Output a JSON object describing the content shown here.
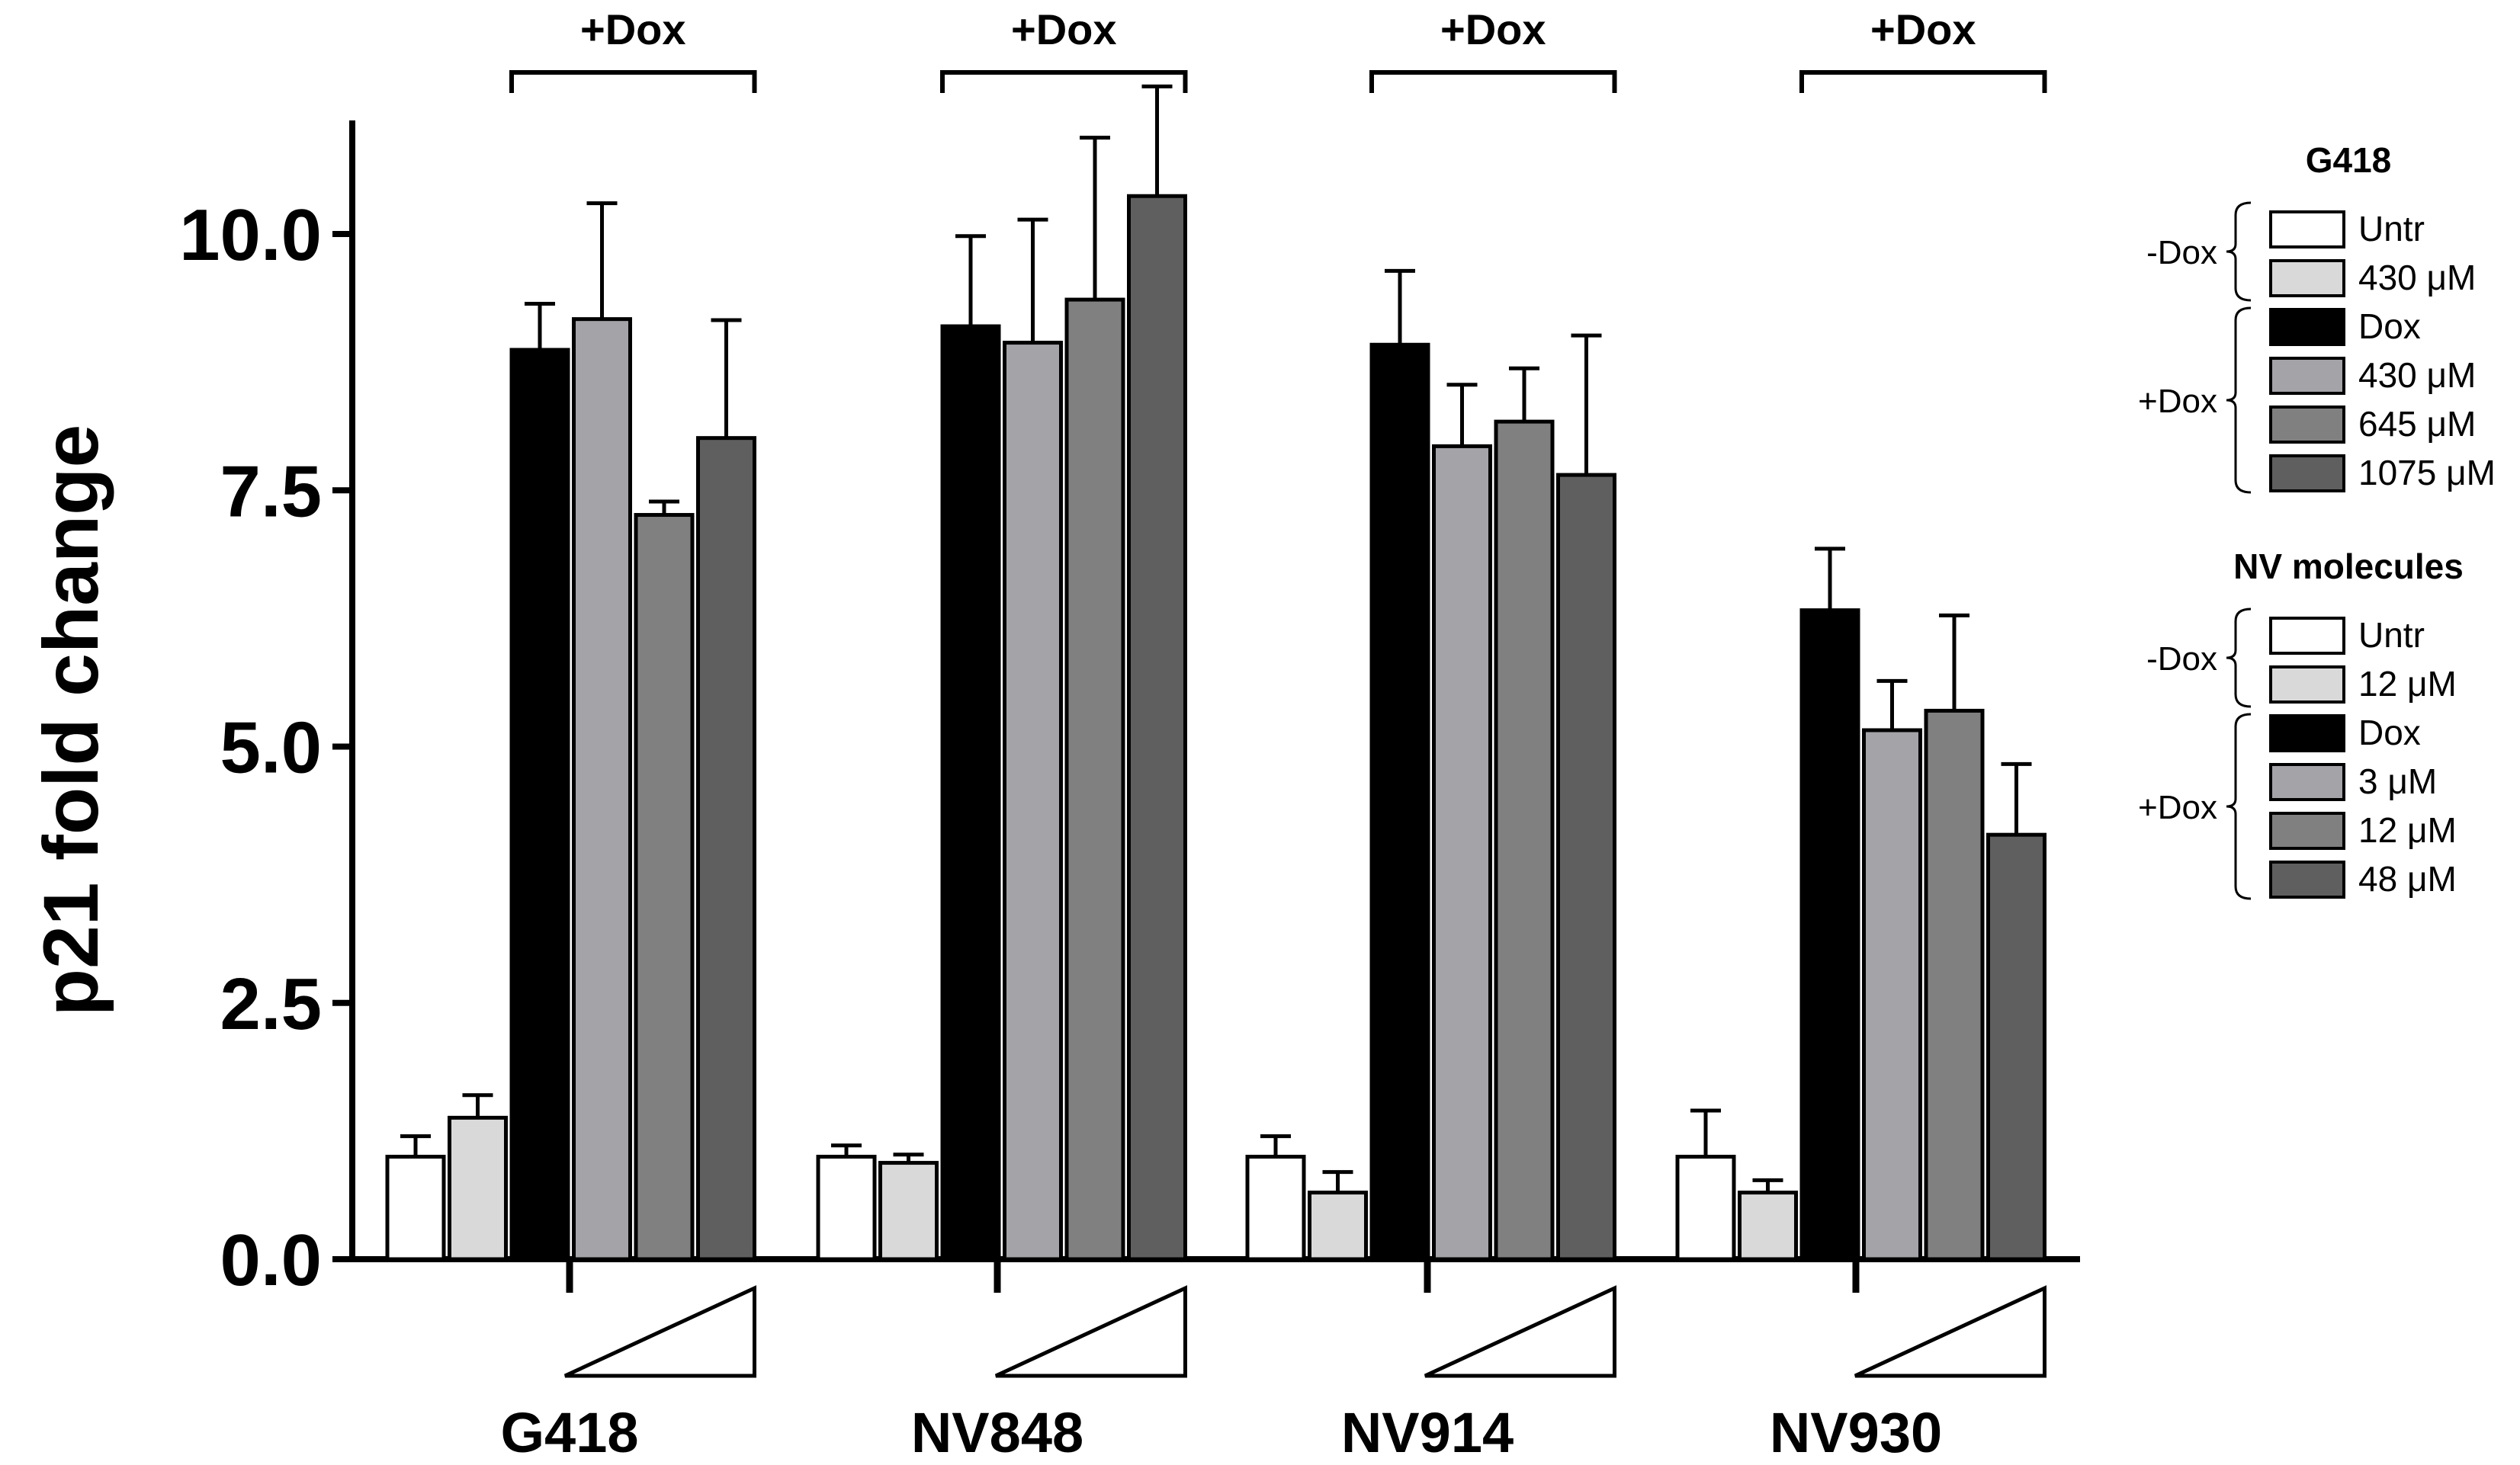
{
  "chart_data": {
    "type": "bar",
    "ylabel": "p21 fold change",
    "ylim": [
      0,
      11
    ],
    "yticks": [
      "0.0",
      "2.5",
      "5.0",
      "7.5",
      "10.0"
    ],
    "ytick_values": [
      0,
      2.5,
      5,
      7.5,
      10
    ],
    "dox_bracket_label": "+Dox",
    "groups": [
      {
        "name": "G418",
        "values": [
          1.0,
          1.38,
          8.87,
          9.17,
          7.26,
          8.01
        ],
        "errors": [
          0.2,
          0.22,
          0.45,
          1.13,
          0.13,
          1.15
        ]
      },
      {
        "name": "NV848",
        "values": [
          1.0,
          0.94,
          9.1,
          8.94,
          9.36,
          10.37
        ],
        "errors": [
          0.11,
          0.08,
          0.88,
          1.2,
          1.58,
          1.07
        ]
      },
      {
        "name": "NV914",
        "values": [
          1.0,
          0.65,
          8.92,
          7.93,
          8.17,
          7.65
        ],
        "errors": [
          0.2,
          0.2,
          0.72,
          0.6,
          0.52,
          1.36
        ]
      },
      {
        "name": "NV930",
        "values": [
          1.0,
          0.65,
          6.33,
          5.16,
          5.35,
          4.14
        ],
        "errors": [
          0.45,
          0.12,
          0.6,
          0.48,
          0.93,
          0.69
        ]
      }
    ],
    "bar_colors": [
      "#ffffff",
      "#d9d9d9",
      "#000000",
      "#a3a3a8",
      "#808080",
      "#5f5f5f"
    ]
  },
  "legend": {
    "groups": [
      {
        "title": "G418",
        "minus_dox_label": "-Dox",
        "plus_dox_label": "+Dox",
        "items": [
          "Untr",
          "430 μM",
          "Dox",
          "430 μM",
          "645 μM",
          "1075 μM"
        ]
      },
      {
        "title": "NV molecules",
        "minus_dox_label": "-Dox",
        "plus_dox_label": "+Dox",
        "items": [
          "Untr",
          "12 μM",
          "Dox",
          "3 μM",
          "12 μM",
          "48 μM"
        ]
      }
    ]
  }
}
